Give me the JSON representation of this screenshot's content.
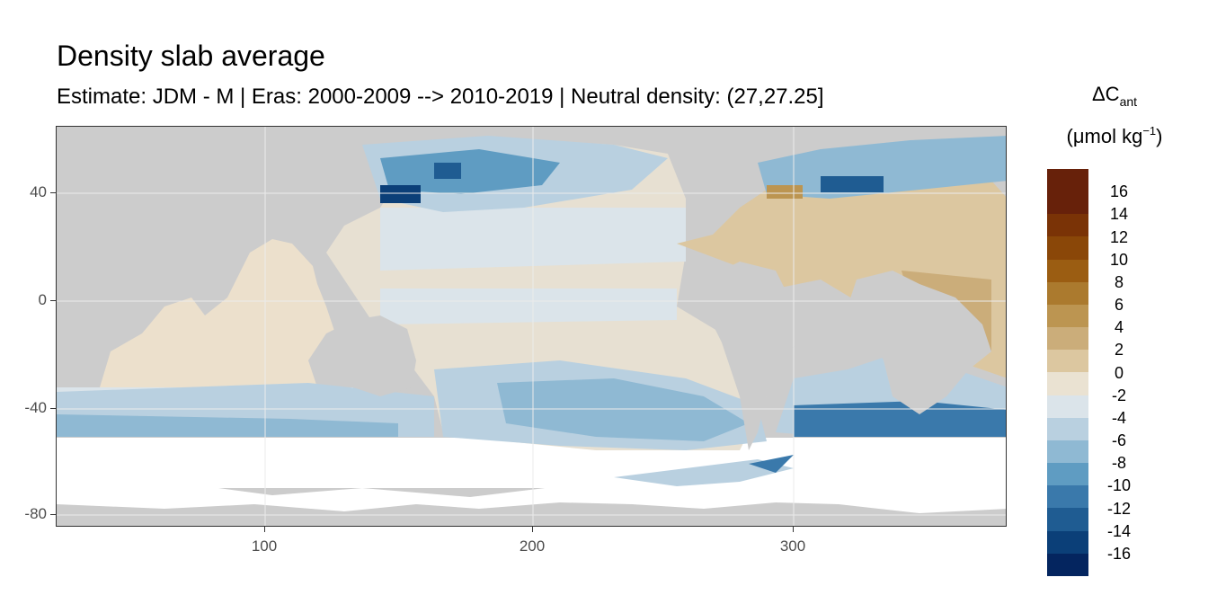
{
  "title": "Density slab average",
  "subtitle": "Estimate: JDM - M | Eras: 2000-2009 --> 2010-2019 | Neutral density: (27,27.25]",
  "legend": {
    "title_main": "ΔC",
    "title_sub": "ant",
    "unit_prefix": "(μmol kg",
    "unit_sup": "−1",
    "unit_suffix": ")",
    "labels": [
      "16",
      "14",
      "12",
      "10",
      "8",
      "6",
      "4",
      "2",
      "0",
      "-2",
      "-4",
      "-6",
      "-8",
      "-10",
      "-12",
      "-14",
      "-16"
    ],
    "colors": [
      "#67210a",
      "#7a3306",
      "#8a4708",
      "#9b5d12",
      "#ab7a2e",
      "#bc9551",
      "#cbad7a",
      "#dcc7a0",
      "#eae2d2",
      "#dbe4ea",
      "#b9d0e0",
      "#8fb9d3",
      "#5f9cc2",
      "#3a79ab",
      "#1f5c92",
      "#0b3f78",
      "#04255f"
    ]
  },
  "axes": {
    "y_ticks": [
      "40",
      "0",
      "-40",
      "-80"
    ],
    "x_ticks": [
      "100",
      "200",
      "300"
    ]
  },
  "chart_data": {
    "type": "heatmap",
    "title": "Density slab average",
    "subtitle": "Estimate: JDM - M | Eras: 2000-2009 --> 2010-2019 | Neutral density: (27,27.25]",
    "x_range": [
      20,
      380
    ],
    "y_range": [
      -85,
      65
    ],
    "x_ticks": [
      100,
      200,
      300
    ],
    "y_ticks": [
      40,
      0,
      -40,
      -80
    ],
    "color_scale_breaks": [
      16,
      14,
      12,
      10,
      8,
      6,
      4,
      2,
      0,
      -2,
      -4,
      -6,
      -8,
      -10,
      -12,
      -14,
      -16
    ],
    "colors": {
      "land": "#cccccc",
      "no_data": "#ffffff",
      "grid": "#ebebeb"
    }
  }
}
